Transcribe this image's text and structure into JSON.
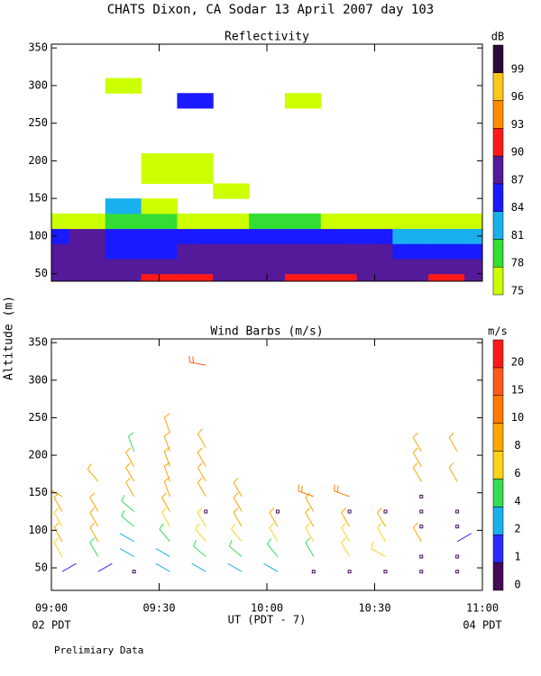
{
  "page": {
    "title": "CHATS Dixon, CA  Sodar  13 April 2007  day 103",
    "y_label": "Altitude (m)",
    "x_label": "UT  (PDT - 7)",
    "x_start_label": "02 PDT",
    "x_end_label": "04 PDT",
    "note": "Prelimiary Data"
  },
  "chart_data": [
    {
      "type": "contour",
      "title": "Reflectivity",
      "x": [
        0,
        10,
        20,
        30,
        40,
        50,
        60,
        70,
        80,
        90,
        100,
        110,
        120
      ],
      "y": [
        40,
        60,
        80,
        100,
        120,
        140,
        160,
        180,
        200,
        220,
        240,
        260,
        280,
        300
      ],
      "values": [
        [
          88,
          88,
          89,
          90,
          91,
          89,
          88,
          90,
          90,
          88,
          89,
          90,
          88
        ],
        [
          88,
          88,
          88,
          88,
          88,
          88,
          88,
          88,
          88,
          88,
          88,
          88,
          88
        ],
        [
          88,
          88,
          85,
          86,
          88,
          88,
          88,
          88,
          88,
          88,
          86,
          85,
          85
        ],
        [
          86,
          88,
          85,
          84,
          84,
          86,
          86,
          86,
          85,
          84,
          82,
          82,
          83
        ],
        [
          77,
          77,
          80,
          79,
          77,
          77,
          78,
          78,
          77,
          77,
          76,
          77,
          77
        ],
        [
          null,
          null,
          83,
          76,
          null,
          null,
          null,
          null,
          null,
          null,
          null,
          null,
          null
        ],
        [
          null,
          null,
          null,
          null,
          null,
          76,
          null,
          null,
          null,
          null,
          null,
          null,
          null
        ],
        [
          null,
          null,
          null,
          76,
          76,
          null,
          null,
          null,
          null,
          null,
          null,
          null,
          null
        ],
        [
          null,
          null,
          null,
          76,
          76,
          null,
          null,
          null,
          null,
          null,
          null,
          null,
          null
        ],
        [
          null,
          null,
          null,
          null,
          null,
          null,
          null,
          null,
          null,
          null,
          null,
          null,
          null
        ],
        [
          null,
          null,
          null,
          null,
          null,
          null,
          null,
          null,
          null,
          null,
          null,
          null,
          null
        ],
        [
          null,
          null,
          null,
          null,
          null,
          null,
          null,
          null,
          null,
          null,
          null,
          null,
          null
        ],
        [
          null,
          null,
          null,
          null,
          86,
          null,
          null,
          77,
          null,
          null,
          null,
          null,
          null
        ],
        [
          null,
          null,
          76,
          null,
          null,
          null,
          null,
          null,
          null,
          null,
          null,
          null,
          null
        ]
      ],
      "xlim": [
        0,
        120
      ],
      "ylim": [
        40,
        355
      ],
      "xticks": [
        {
          "value": 0,
          "label": "09:00"
        },
        {
          "value": 30,
          "label": "09:30"
        },
        {
          "value": 60,
          "label": "10:00"
        },
        {
          "value": 90,
          "label": "10:30"
        },
        {
          "value": 120,
          "label": "11:00"
        }
      ],
      "yticks": [
        50,
        100,
        150,
        200,
        250,
        300,
        350
      ],
      "colorbar": {
        "label": "dB",
        "levels": [
          75,
          78,
          81,
          84,
          87,
          90,
          93,
          96,
          99
        ],
        "colors": [
          "#ccff00",
          "#33dd33",
          "#19b0f0",
          "#1a1aff",
          "#551a99",
          "#ff1a1a",
          "#ff8c00",
          "#ffc81a",
          "#2a0a3a"
        ]
      }
    },
    {
      "type": "barbs",
      "title": "Wind Barbs (m/s)",
      "columns": [
        {
          "x": 3,
          "heights": [
            45,
            65,
            85,
            105,
            125,
            145
          ],
          "speeds": [
            1.5,
            7,
            9,
            6,
            8,
            9
          ],
          "directions": [
            60,
            330,
            330,
            330,
            330,
            300
          ]
        },
        {
          "x": 13,
          "heights": [
            45,
            65,
            85,
            105,
            125,
            165
          ],
          "speeds": [
            1.5,
            5,
            8,
            8,
            9,
            9
          ],
          "directions": [
            60,
            330,
            330,
            330,
            330,
            320
          ]
        },
        {
          "x": 23,
          "heights": [
            45,
            65,
            85,
            105,
            125,
            145,
            165,
            185,
            205
          ],
          "speeds": [
            0,
            2.5,
            3,
            5,
            5,
            9,
            9,
            9,
            5
          ],
          "directions": [
            0,
            300,
            300,
            310,
            310,
            330,
            330,
            330,
            340
          ]
        },
        {
          "x": 33,
          "heights": [
            45,
            65,
            85,
            105,
            125,
            145,
            165,
            185,
            205,
            230
          ],
          "speeds": [
            3,
            3,
            5,
            7,
            8,
            9,
            9,
            9,
            9,
            9
          ],
          "directions": [
            300,
            300,
            320,
            330,
            330,
            340,
            340,
            340,
            340,
            340
          ]
        },
        {
          "x": 43,
          "heights": [
            45,
            65,
            85,
            105,
            125,
            145,
            165,
            185,
            210,
            320
          ],
          "speeds": [
            3,
            4,
            6,
            7,
            0,
            8,
            9,
            9,
            9,
            18
          ],
          "directions": [
            300,
            310,
            320,
            330,
            0,
            330,
            330,
            330,
            330,
            280
          ]
        },
        {
          "x": 53,
          "heights": [
            45,
            65,
            85,
            105,
            125,
            145
          ],
          "speeds": [
            3,
            4,
            6,
            8,
            8,
            8
          ],
          "directions": [
            300,
            310,
            320,
            330,
            330,
            330
          ]
        },
        {
          "x": 63,
          "heights": [
            45,
            65,
            85,
            105,
            125
          ],
          "speeds": [
            3,
            5,
            6,
            8,
            0
          ],
          "directions": [
            300,
            320,
            330,
            330,
            0
          ]
        },
        {
          "x": 73,
          "heights": [
            45,
            65,
            85,
            105,
            125,
            145
          ],
          "speeds": [
            0,
            5,
            7,
            8,
            9,
            12
          ],
          "directions": [
            0,
            330,
            330,
            330,
            330,
            290
          ]
        },
        {
          "x": 83,
          "heights": [
            45,
            65,
            85,
            105,
            125,
            145
          ],
          "speeds": [
            0,
            6,
            7,
            9,
            0,
            12
          ],
          "directions": [
            0,
            330,
            330,
            330,
            0,
            290
          ]
        },
        {
          "x": 93,
          "heights": [
            45,
            65,
            85,
            105,
            125
          ],
          "speeds": [
            0,
            7,
            6,
            9,
            0
          ],
          "directions": [
            0,
            300,
            330,
            330,
            0
          ]
        },
        {
          "x": 103,
          "heights": [
            45,
            65,
            85,
            105,
            125,
            145,
            165,
            185,
            205
          ],
          "speeds": [
            0,
            0,
            9,
            0,
            0,
            0,
            9,
            9,
            9
          ],
          "directions": [
            0,
            0,
            330,
            0,
            0,
            0,
            330,
            330,
            330
          ]
        },
        {
          "x": 113,
          "heights": [
            45,
            65,
            85,
            105,
            125,
            165,
            205
          ],
          "speeds": [
            0,
            0,
            1,
            0,
            0,
            9,
            9
          ],
          "directions": [
            0,
            0,
            60,
            0,
            0,
            330,
            330
          ]
        }
      ],
      "xlim": [
        0,
        120
      ],
      "ylim": [
        20,
        355
      ],
      "xticks": [
        {
          "value": 0,
          "label": "09:00"
        },
        {
          "value": 30,
          "label": "09:30"
        },
        {
          "value": 60,
          "label": "10:00"
        },
        {
          "value": 90,
          "label": "10:30"
        },
        {
          "value": 120,
          "label": "11:00"
        }
      ],
      "yticks": [
        50,
        100,
        150,
        200,
        250,
        300,
        350
      ],
      "colorbar": {
        "label": "m/s",
        "levels": [
          0,
          1,
          2,
          4,
          6,
          8,
          10,
          15,
          20
        ],
        "colors": [
          "#440a55",
          "#2a2aff",
          "#19b0f0",
          "#33dd55",
          "#ffd21a",
          "#ffa500",
          "#ff7a00",
          "#ff5a1a",
          "#ff1a1a"
        ]
      }
    }
  ]
}
